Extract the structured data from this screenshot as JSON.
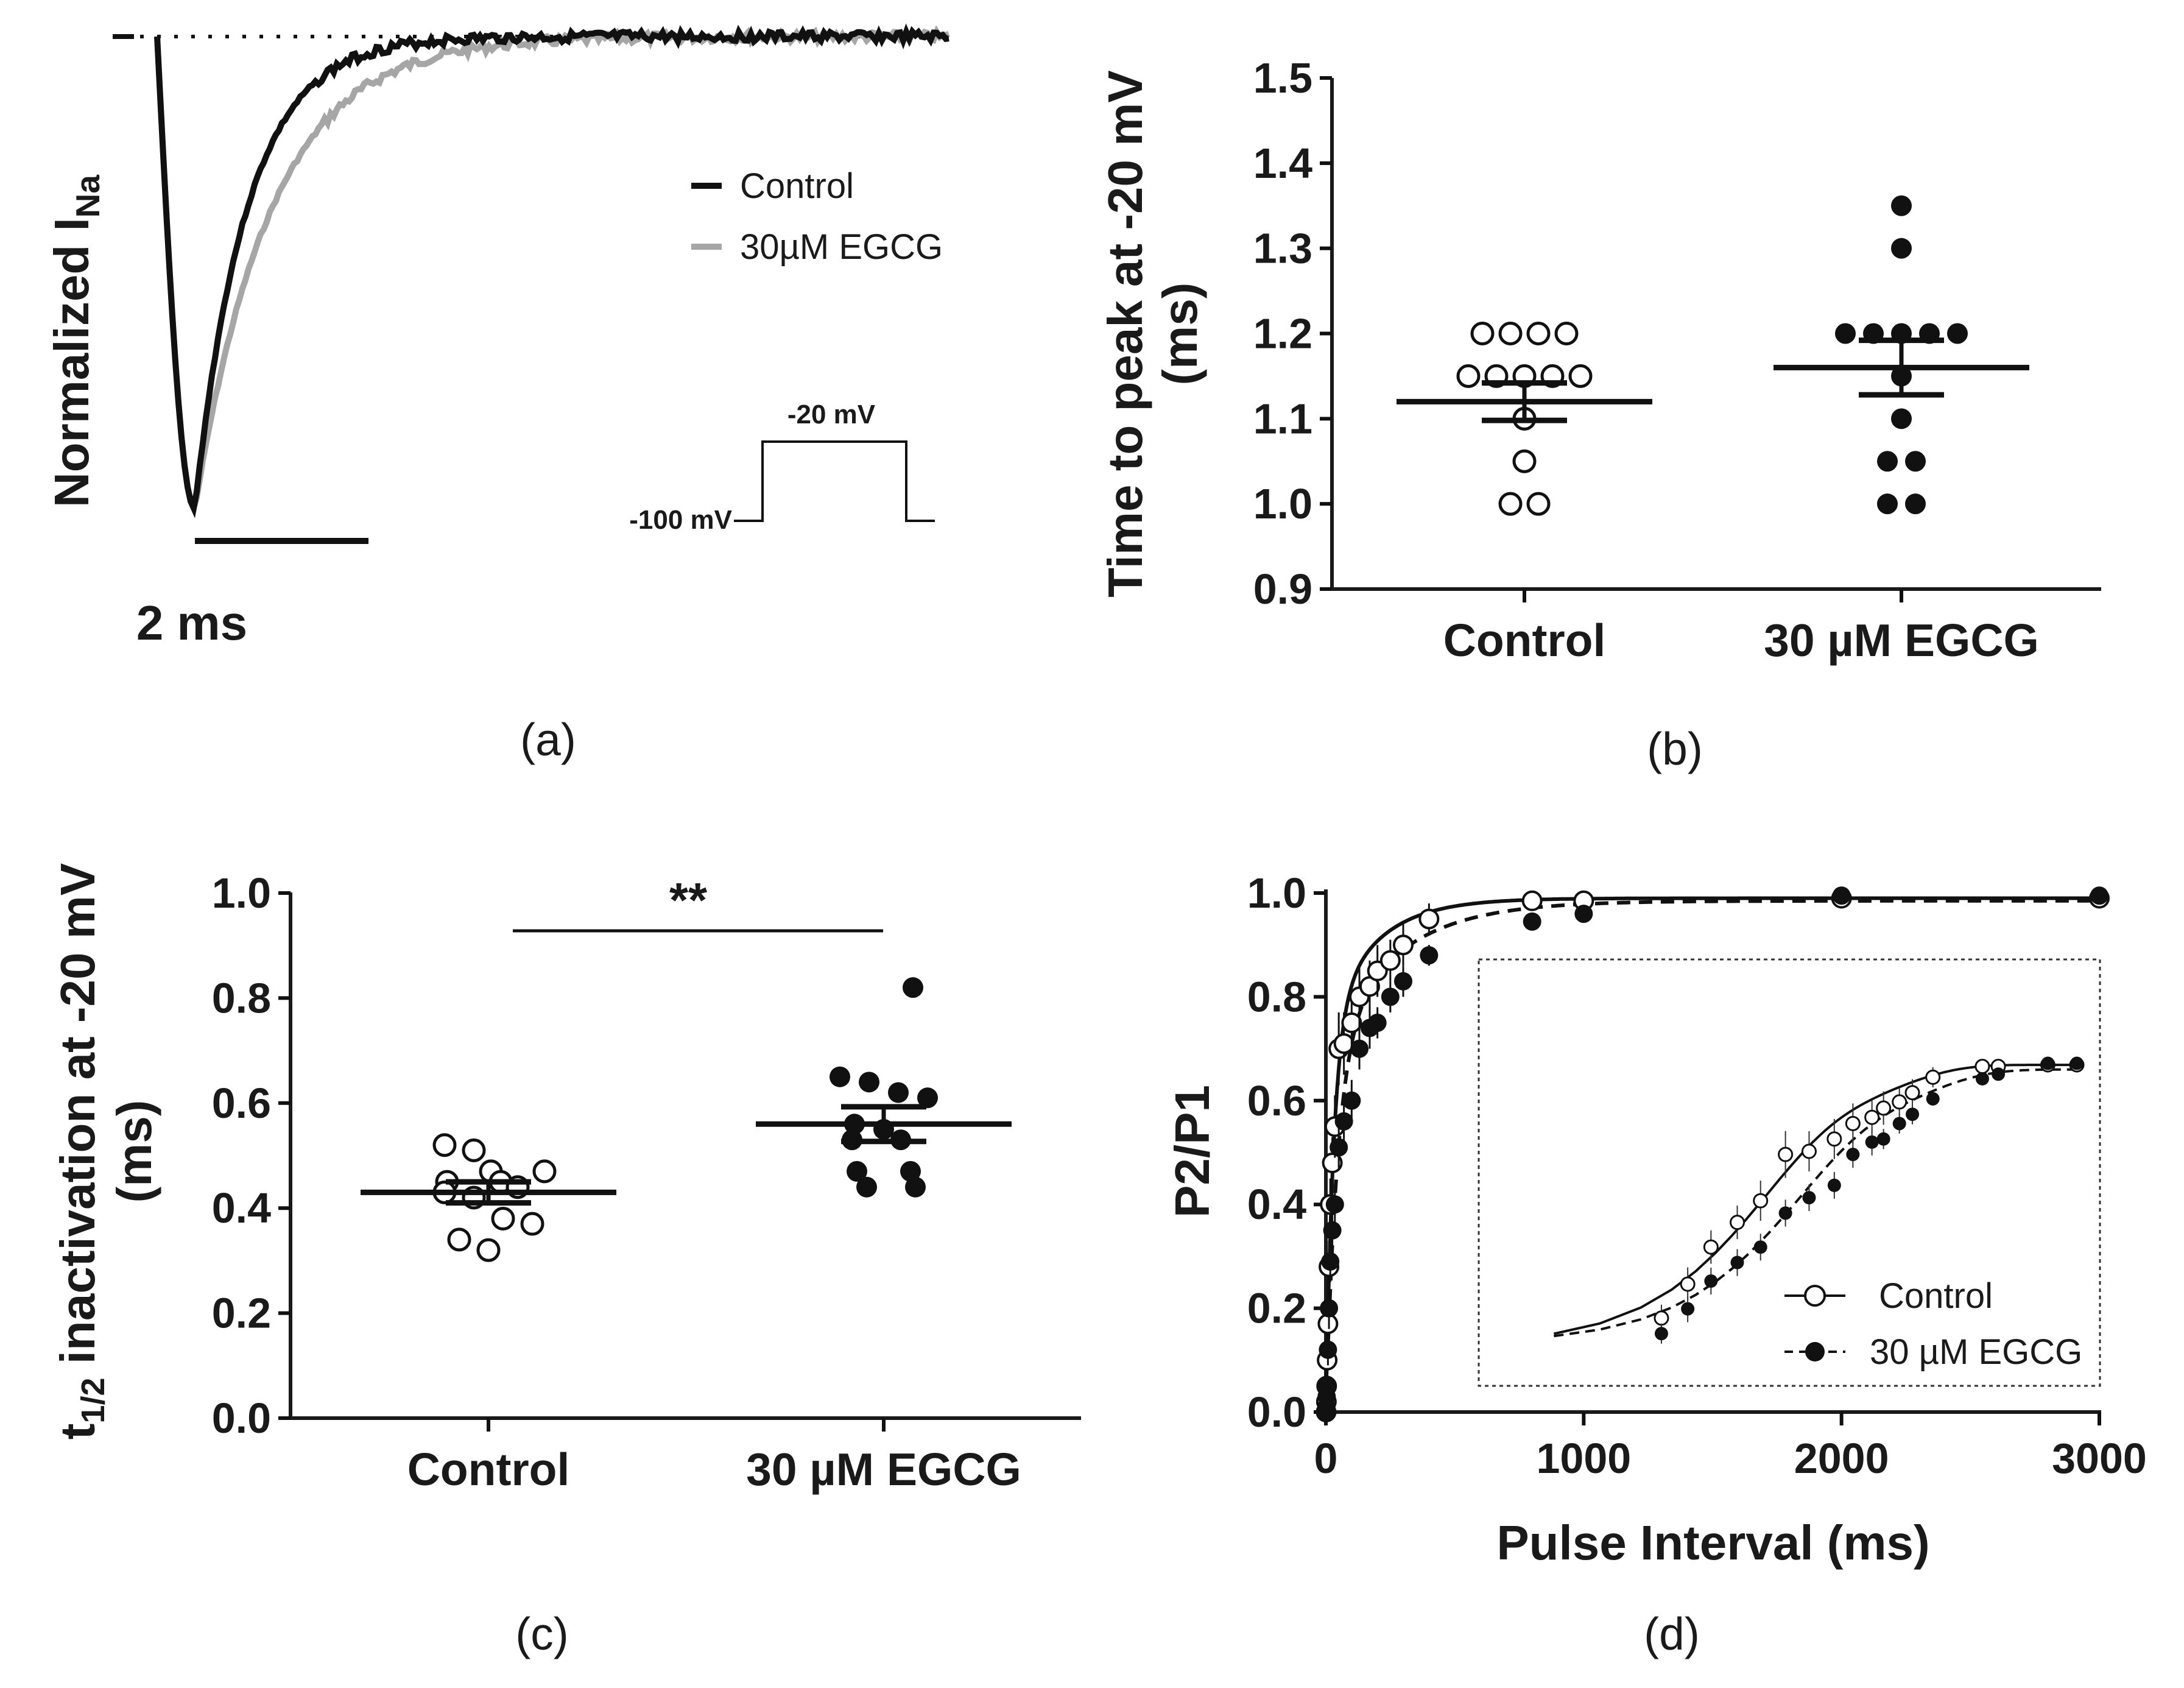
{
  "chart_data": [
    {
      "panel": "(a)",
      "type": "line",
      "ylabel": "Normalized I",
      "ylabel_sub": "Na",
      "scale_bar_label": "2 ms",
      "series": [
        {
          "name": "Control",
          "color": "#111111"
        },
        {
          "name": "30µM EGCG",
          "color": "#a6a6a6"
        }
      ],
      "protocol": {
        "holding_label": "-100 mV",
        "step_label": "-20 mV"
      }
    },
    {
      "panel": "(b)",
      "type": "scatter",
      "ylabel_line1": "Time to peak at -20 mV",
      "ylabel_line2": "(ms)",
      "ylim": [
        0.9,
        1.5
      ],
      "yticks": [
        "0.9",
        "1.0",
        "1.1",
        "1.2",
        "1.3",
        "1.4",
        "1.5"
      ],
      "categories": [
        "Control",
        "30 µM EGCG"
      ],
      "groups": [
        {
          "name": "Control",
          "marker": "open",
          "mean": 1.12,
          "sem": 0.022,
          "values": [
            1.2,
            1.2,
            1.2,
            1.2,
            1.15,
            1.15,
            1.15,
            1.15,
            1.15,
            1.1,
            1.05,
            1.0,
            1.0
          ]
        },
        {
          "name": "30 µM EGCG",
          "marker": "filled",
          "mean": 1.16,
          "sem": 0.032,
          "values": [
            1.35,
            1.3,
            1.2,
            1.2,
            1.2,
            1.2,
            1.2,
            1.15,
            1.1,
            1.05,
            1.05,
            1.0,
            1.0
          ]
        }
      ]
    },
    {
      "panel": "(c)",
      "type": "scatter",
      "ylabel_main": "t",
      "ylabel_sub": "1/2",
      "ylabel_rest": " inactivation at -20 mV",
      "ylabel_line2": "(ms)",
      "ylim": [
        0.0,
        1.0
      ],
      "yticks": [
        "0.0",
        "0.2",
        "0.4",
        "0.6",
        "0.8",
        "1.0"
      ],
      "categories": [
        "Control",
        "30 µM EGCG"
      ],
      "significance": "**",
      "groups": [
        {
          "name": "Control",
          "marker": "open",
          "mean": 0.43,
          "sem": 0.02,
          "values": [
            0.52,
            0.51,
            0.47,
            0.47,
            0.45,
            0.45,
            0.44,
            0.43,
            0.42,
            0.38,
            0.37,
            0.34,
            0.32
          ]
        },
        {
          "name": "30 µM EGCG",
          "marker": "filled",
          "mean": 0.56,
          "sem": 0.033,
          "values": [
            0.82,
            0.65,
            0.64,
            0.62,
            0.61,
            0.56,
            0.55,
            0.53,
            0.53,
            0.47,
            0.47,
            0.44,
            0.44
          ]
        }
      ]
    },
    {
      "panel": "(d)",
      "type": "line",
      "xlabel": "Pulse Interval (ms)",
      "ylabel": "P2/P1",
      "xlim": [
        0,
        3000
      ],
      "ylim": [
        0.0,
        1.0
      ],
      "xticks": [
        "0",
        "1000",
        "2000",
        "3000"
      ],
      "yticks": [
        "0.0",
        "0.2",
        "0.4",
        "0.6",
        "0.8",
        "1.0"
      ],
      "series": [
        {
          "name": "Control",
          "marker": "open",
          "line": "solid",
          "x": [
            1,
            2,
            3,
            5,
            8,
            12,
            17,
            25,
            35,
            50,
            70,
            100,
            130,
            170,
            200,
            250,
            300,
            400,
            800,
            1000,
            2000,
            3000
          ],
          "y": [
            0.0,
            0.02,
            0.05,
            0.1,
            0.17,
            0.28,
            0.4,
            0.48,
            0.55,
            0.7,
            0.71,
            0.75,
            0.8,
            0.82,
            0.85,
            0.87,
            0.9,
            0.95,
            0.985,
            0.985,
            0.99,
            0.99
          ],
          "err": [
            0,
            0.01,
            0.02,
            0.03,
            0.04,
            0.05,
            0.05,
            0.05,
            0.06,
            0.07,
            0.06,
            0.06,
            0.06,
            0.05,
            0.05,
            0.04,
            0.04,
            0.03,
            0.01,
            0.01,
            0.01,
            0.01
          ]
        },
        {
          "name": "30 µM EGCG",
          "marker": "filled",
          "line": "dashed",
          "x": [
            1,
            2,
            3,
            5,
            8,
            12,
            17,
            25,
            35,
            50,
            70,
            100,
            130,
            170,
            200,
            250,
            300,
            400,
            800,
            1000,
            2000,
            3000
          ],
          "y": [
            0.0,
            0.01,
            0.03,
            0.05,
            0.12,
            0.2,
            0.29,
            0.35,
            0.4,
            0.51,
            0.56,
            0.6,
            0.7,
            0.74,
            0.75,
            0.8,
            0.83,
            0.88,
            0.945,
            0.96,
            0.995,
            0.995
          ],
          "err": [
            0,
            0.01,
            0.01,
            0.02,
            0.03,
            0.04,
            0.04,
            0.04,
            0.04,
            0.04,
            0.04,
            0.04,
            0.04,
            0.04,
            0.03,
            0.03,
            0.03,
            0.02,
            0.01,
            0.01,
            0.005,
            0.005
          ]
        }
      ],
      "legend": {
        "position": "inset bottom-right",
        "entries": [
          "Control",
          "30 µM EGCG"
        ]
      },
      "inset": "zoomed view of early pulse intervals"
    }
  ]
}
